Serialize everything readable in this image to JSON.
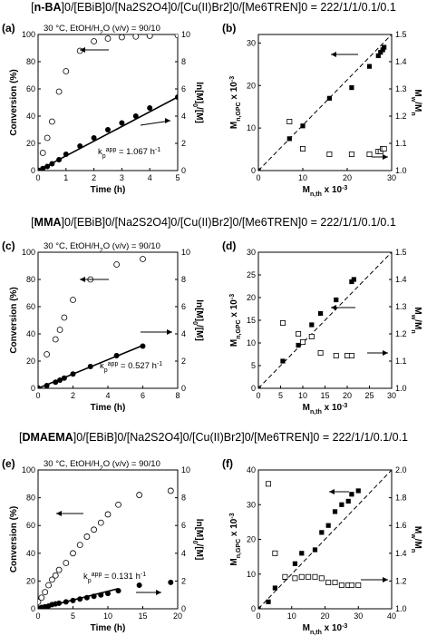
{
  "rows": [
    {
      "title_bold": "n-BA",
      "title_rest": "]0/[EBiB]0/[Na2S2O4]0/[Cu(II)Br2]0/[Me6TREN]0 = 222/1/1/0.1/0.1"
    },
    {
      "title_bold": "MMA",
      "title_rest": "]0/[EBiB]0/[Na2S2O4]0/[Cu(II)Br2]0/[Me6TREN]0 = 222/1/1/0.1/0.1"
    },
    {
      "title_bold": "DMAEMA",
      "title_rest": "]0/[EBiB]0/[Na2S2O4]0/[Cu(II)Br2]0/[Me6TREN]0 = 222/1/1/0.1/0.1"
    }
  ],
  "chart_data": [
    {
      "panel": "(a)",
      "type": "scatter",
      "condition": "30 °C, EtOH/H2O (v/v) = 90/10",
      "xlabel": "Time (h)",
      "ylabel": "Conversion (%)",
      "y2label": "ln[M]0/[M]",
      "xlim": [
        0,
        5
      ],
      "xticks": [
        0,
        1,
        2,
        3,
        4,
        5
      ],
      "ylim": [
        0,
        100
      ],
      "yticks": [
        0,
        20,
        40,
        60,
        80,
        100
      ],
      "y2lim": [
        0,
        10
      ],
      "y2ticks": [
        0,
        2,
        4,
        6,
        8,
        10
      ],
      "annotation": "kpapp = 1.067 h-1",
      "series": [
        {
          "axis": "left",
          "marker": "open-circle",
          "x": [
            0,
            0.17,
            0.33,
            0.5,
            0.75,
            1.0,
            1.5,
            2.0,
            2.5,
            3.0,
            3.5,
            4.0,
            5.0
          ],
          "y": [
            0,
            13,
            24,
            36,
            58,
            73,
            88,
            95,
            97,
            98,
            98.5,
            99,
            99.5
          ]
        },
        {
          "axis": "right",
          "marker": "filled-circle",
          "x": [
            0,
            0.17,
            0.33,
            0.5,
            0.75,
            1.0,
            1.5,
            2.0,
            2.5,
            3.0,
            3.5,
            4.0,
            5.0
          ],
          "y": [
            0,
            0.15,
            0.3,
            0.5,
            0.8,
            1.2,
            1.8,
            2.4,
            3.0,
            3.5,
            4.0,
            4.6,
            5.4
          ]
        }
      ],
      "fit_line": {
        "axis": "right",
        "x": [
          0,
          5
        ],
        "y": [
          0,
          5.4
        ]
      }
    },
    {
      "panel": "(b)",
      "type": "scatter",
      "xlabel": "Mn,th x 10-3",
      "ylabel": "Mn,GPC x 10-3",
      "y2label": "Mw/Mn",
      "xlim": [
        0,
        30
      ],
      "xticks": [
        0,
        10,
        20,
        30
      ],
      "ylim": [
        0,
        32
      ],
      "yticks": [
        0,
        10,
        20,
        30
      ],
      "y2lim": [
        1.0,
        1.5
      ],
      "y2ticks": [
        1.0,
        1.1,
        1.2,
        1.3,
        1.4,
        1.5
      ],
      "series": [
        {
          "axis": "left",
          "marker": "filled-square",
          "x": [
            0,
            7,
            10,
            16,
            21,
            25,
            27,
            27.5,
            28,
            28.3
          ],
          "y": [
            0,
            7.5,
            10.5,
            17,
            19.5,
            24.5,
            27,
            27.8,
            28.4,
            29
          ]
        },
        {
          "axis": "right",
          "marker": "open-square",
          "x": [
            7,
            10,
            16,
            21,
            25,
            27,
            27.5,
            28,
            28.3
          ],
          "y": [
            1.18,
            1.08,
            1.06,
            1.06,
            1.06,
            1.07,
            1.07,
            1.08,
            1.08
          ]
        }
      ],
      "dashed_line": {
        "x": [
          0,
          30
        ],
        "y": [
          0,
          32
        ]
      }
    },
    {
      "panel": "(c)",
      "type": "scatter",
      "condition": "30 °C, EtOH/H2O (v/v) = 90/10",
      "xlabel": "Time (h)",
      "ylabel": "Conversion (%)",
      "y2label": "ln[M]0/[M]",
      "xlim": [
        0,
        8
      ],
      "xticks": [
        0,
        2,
        4,
        6,
        8
      ],
      "ylim": [
        0,
        100
      ],
      "yticks": [
        0,
        20,
        40,
        60,
        80,
        100
      ],
      "y2lim": [
        0,
        10
      ],
      "y2ticks": [
        0,
        2,
        4,
        6,
        8,
        10
      ],
      "annotation": "kpapp = 0.527 h-1",
      "series": [
        {
          "axis": "left",
          "marker": "open-circle",
          "x": [
            0,
            0.5,
            1.0,
            1.25,
            1.5,
            2.0,
            3.0,
            4.5,
            6.0
          ],
          "y": [
            0,
            25,
            36,
            43,
            52,
            65,
            80,
            91,
            95
          ]
        },
        {
          "axis": "right",
          "marker": "filled-circle",
          "x": [
            0,
            0.5,
            1.0,
            1.25,
            1.5,
            2.0,
            3.0,
            4.5,
            6.0
          ],
          "y": [
            0,
            0.2,
            0.45,
            0.6,
            0.75,
            1.05,
            1.6,
            2.4,
            3.1
          ]
        }
      ],
      "fit_line": {
        "axis": "right",
        "x": [
          0,
          6
        ],
        "y": [
          0,
          3.15
        ]
      }
    },
    {
      "panel": "(d)",
      "type": "scatter",
      "xlabel": "Mn,th x 10-3",
      "ylabel": "Mn,GPC x 10-3",
      "y2label": "Mw/Mn",
      "xlim": [
        0,
        30
      ],
      "xticks": [
        0,
        5,
        10,
        15,
        20,
        25,
        30
      ],
      "ylim": [
        0,
        30
      ],
      "yticks": [
        0,
        5,
        10,
        15,
        20,
        25,
        30
      ],
      "y2lim": [
        1.0,
        1.5
      ],
      "y2ticks": [
        1.0,
        1.1,
        1.2,
        1.3,
        1.4,
        1.5
      ],
      "series": [
        {
          "axis": "left",
          "marker": "filled-square",
          "x": [
            0,
            5.5,
            9,
            12,
            14,
            17.5,
            21,
            21.5
          ],
          "y": [
            0,
            6,
            9.5,
            14,
            16.5,
            19.5,
            23.5,
            24
          ]
        },
        {
          "axis": "right",
          "marker": "open-square",
          "x": [
            5.5,
            9,
            10,
            12,
            14,
            17.5,
            20,
            21
          ],
          "y": [
            1.24,
            1.2,
            1.17,
            1.19,
            1.13,
            1.12,
            1.12,
            1.12
          ]
        }
      ],
      "dashed_line": {
        "x": [
          0,
          30
        ],
        "y": [
          0,
          30
        ]
      }
    },
    {
      "panel": "(e)",
      "type": "scatter",
      "condition": "30 °C, EtOH/H2O (v/v) = 90/10",
      "xlabel": "Time (h)",
      "ylabel": "Conversion (%)",
      "y2label": "ln[M]0/[M]",
      "xlim": [
        0,
        20
      ],
      "xticks": [
        0,
        5,
        10,
        15,
        20
      ],
      "ylim": [
        0,
        100
      ],
      "yticks": [
        0,
        20,
        40,
        60,
        80,
        100
      ],
      "y2lim": [
        0,
        10
      ],
      "y2ticks": [
        0,
        2,
        4,
        6,
        8,
        10
      ],
      "annotation": "kpapp = 0.131 h-1",
      "series": [
        {
          "axis": "left",
          "marker": "open-circle",
          "x": [
            0,
            0.5,
            1,
            1.5,
            2,
            2.5,
            3,
            4,
            5,
            6,
            7,
            8,
            9,
            10,
            11.5,
            14.5,
            19
          ],
          "y": [
            5,
            8,
            12,
            17,
            21,
            24,
            28,
            33,
            40,
            46,
            52,
            57,
            62,
            68,
            75,
            82,
            85
          ]
        },
        {
          "axis": "right",
          "marker": "filled-circle",
          "x": [
            0,
            0.5,
            1,
            1.5,
            2,
            2.5,
            3,
            4,
            5,
            6,
            7,
            8,
            9,
            10,
            11.5,
            14.5,
            19
          ],
          "y": [
            0.05,
            0.1,
            0.15,
            0.2,
            0.3,
            0.35,
            0.4,
            0.5,
            0.6,
            0.7,
            0.8,
            0.9,
            1.0,
            1.1,
            1.3,
            1.7,
            1.9
          ]
        }
      ],
      "fit_line": {
        "axis": "right",
        "x": [
          0,
          11.5
        ],
        "y": [
          0,
          1.45
        ]
      }
    },
    {
      "panel": "(f)",
      "type": "scatter",
      "xlabel": "Mn,th x 10-3",
      "ylabel": "Mn,GPC x 10-3",
      "y2label": "Mw/Mn",
      "xlim": [
        0,
        40
      ],
      "xticks": [
        0,
        10,
        20,
        30,
        40
      ],
      "ylim": [
        0,
        40
      ],
      "yticks": [
        0,
        10,
        20,
        30,
        40
      ],
      "y2lim": [
        1.0,
        2.0
      ],
      "y2ticks": [
        1.0,
        1.2,
        1.4,
        1.6,
        1.8,
        2.0
      ],
      "series": [
        {
          "axis": "left",
          "marker": "filled-square",
          "x": [
            0,
            3,
            5,
            8,
            11,
            13,
            17,
            19,
            21,
            23,
            25,
            27,
            28,
            30
          ],
          "y": [
            0,
            2,
            6,
            9,
            13,
            16,
            17,
            22,
            24,
            28,
            30,
            31,
            33,
            34
          ]
        },
        {
          "axis": "right",
          "marker": "open-square",
          "x": [
            3,
            5,
            8,
            11,
            13,
            15,
            17,
            19,
            21,
            23,
            25,
            27,
            28,
            30
          ],
          "y": [
            1.9,
            1.4,
            1.23,
            1.22,
            1.23,
            1.23,
            1.23,
            1.22,
            1.19,
            1.19,
            1.17,
            1.17,
            1.17,
            1.17
          ]
        }
      ],
      "dashed_line": {
        "x": [
          0,
          40
        ],
        "y": [
          0,
          40
        ]
      }
    }
  ]
}
